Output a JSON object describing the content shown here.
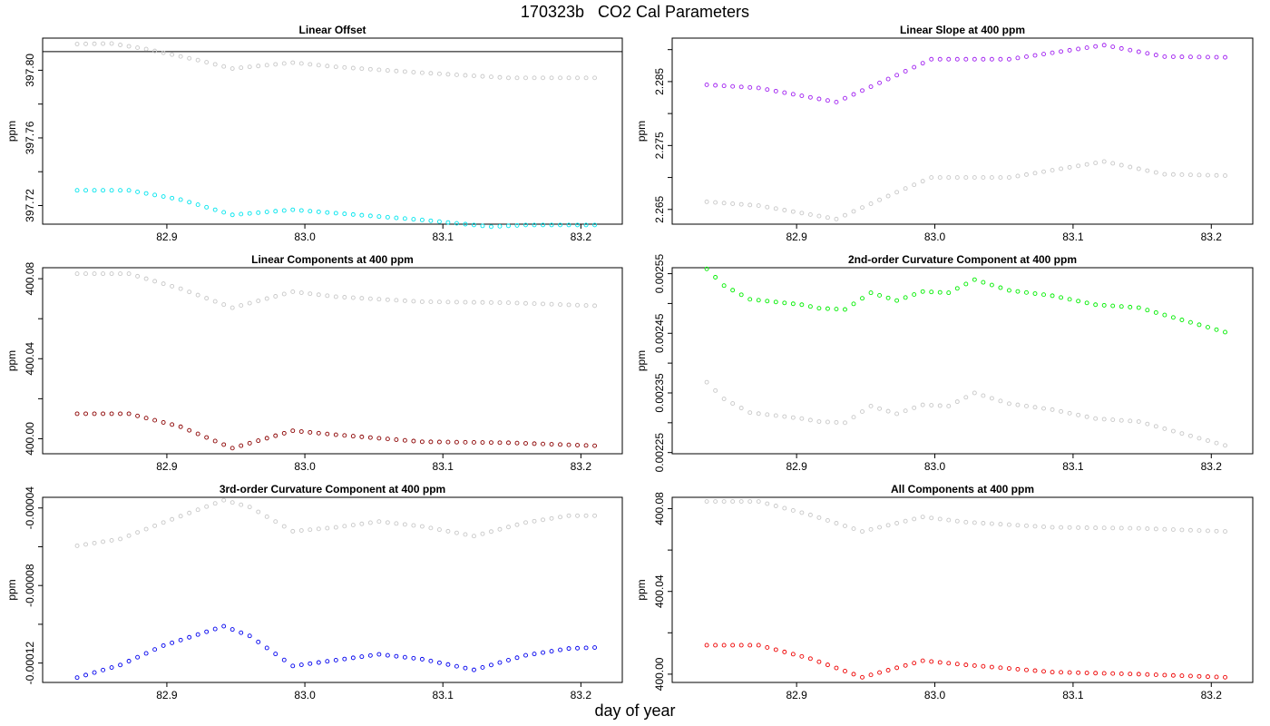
{
  "title": "170323b   CO2 Cal Parameters",
  "xlabel": "day of year",
  "colors": {
    "gray": "#c8c8c8",
    "cyan": "#00e5ee",
    "purple": "#a020f0",
    "darkred": "#8b0000",
    "green": "#00ee00",
    "blue": "#0000ee",
    "red": "#ee0000"
  },
  "x_range": {
    "start": 82.835,
    "end": 83.21,
    "step": 0.00625
  },
  "chart_data": [
    {
      "type": "scatter",
      "title": "Linear Offset",
      "ylabel": "ppm",
      "xlim": [
        82.81,
        83.23
      ],
      "ylim": [
        397.709,
        397.819
      ],
      "xticks": [
        "82.9",
        "83.0",
        "83.1",
        "83.2"
      ],
      "yticks": [
        "397.72",
        "397.76",
        "397.80"
      ],
      "hline": 397.811,
      "series": [
        {
          "name": "gray",
          "color": "gray",
          "keys": [
            [
              0,
              397.8155
            ],
            [
              4,
              397.8158
            ],
            [
              8,
              397.8125
            ],
            [
              14,
              397.806
            ],
            [
              18,
              397.801
            ],
            [
              25,
              397.8045
            ],
            [
              30,
              397.802
            ],
            [
              40,
              397.7985
            ],
            [
              50,
              397.7955
            ],
            [
              60,
              397.7955
            ]
          ]
        },
        {
          "name": "cyan",
          "color": "cyan",
          "keys": [
            [
              0,
              397.729
            ],
            [
              6,
              397.729
            ],
            [
              12,
              397.7235
            ],
            [
              18,
              397.7145
            ],
            [
              25,
              397.7175
            ],
            [
              30,
              397.7155
            ],
            [
              40,
              397.7115
            ],
            [
              48,
              397.7075
            ],
            [
              52,
              397.7085
            ],
            [
              60,
              397.7085
            ]
          ]
        }
      ]
    },
    {
      "type": "scatter",
      "title": "Linear Slope at 400 ppm",
      "ylabel": "ppm",
      "xlim": [
        82.81,
        83.23
      ],
      "ylim": [
        2.2627,
        2.2918
      ],
      "xticks": [
        "82.9",
        "83.0",
        "83.1",
        "83.2"
      ],
      "yticks": [
        "2.265",
        "2.275",
        "2.285"
      ],
      "series": [
        {
          "name": "purple",
          "color": "purple",
          "keys": [
            [
              0,
              2.2845
            ],
            [
              6,
              2.284
            ],
            [
              15,
              2.2818
            ],
            [
              22,
              2.286
            ],
            [
              26,
              2.2885
            ],
            [
              35,
              2.2885
            ],
            [
              46,
              2.2907
            ],
            [
              53,
              2.2889
            ],
            [
              60,
              2.2888
            ]
          ]
        },
        {
          "name": "gray",
          "color": "gray",
          "keys": [
            [
              0,
              2.2662
            ],
            [
              6,
              2.2656
            ],
            [
              15,
              2.2635
            ],
            [
              22,
              2.2677
            ],
            [
              26,
              2.27
            ],
            [
              35,
              2.27
            ],
            [
              46,
              2.2725
            ],
            [
              53,
              2.2705
            ],
            [
              60,
              2.2703
            ]
          ]
        }
      ]
    },
    {
      "type": "scatter",
      "title": "Linear Components at 400 ppm",
      "ylabel": "ppm",
      "xlim": [
        82.81,
        83.23
      ],
      "ylim": [
        399.9925,
        400.0855
      ],
      "xticks": [
        "82.9",
        "83.0",
        "83.1",
        "83.2"
      ],
      "yticks": [
        "400.00",
        "400.04",
        "400.08"
      ],
      "series": [
        {
          "name": "gray",
          "color": "gray",
          "keys": [
            [
              0,
              400.0825
            ],
            [
              6,
              400.0825
            ],
            [
              12,
              400.075
            ],
            [
              18,
              400.0655
            ],
            [
              25,
              400.0735
            ],
            [
              30,
              400.071
            ],
            [
              40,
              400.0685
            ],
            [
              50,
              400.068
            ],
            [
              60,
              400.0665
            ]
          ]
        },
        {
          "name": "darkred",
          "color": "darkred",
          "keys": [
            [
              0,
              400.0125
            ],
            [
              6,
              400.0125
            ],
            [
              12,
              400.006
            ],
            [
              18,
              399.9953
            ],
            [
              25,
              400.004
            ],
            [
              30,
              400.002
            ],
            [
              40,
              399.9985
            ],
            [
              50,
              399.998
            ],
            [
              60,
              399.9965
            ]
          ]
        }
      ]
    },
    {
      "type": "scatter",
      "title": "2nd-order Curvature Component at 400 ppm",
      "ylabel": "ppm",
      "xlim": [
        82.81,
        83.23
      ],
      "ylim": [
        0.002248,
        0.00256
      ],
      "xticks": [
        "82.9",
        "83.0",
        "83.1",
        "83.2"
      ],
      "yticks": [
        "0.00225",
        "0.00235",
        "0.00245",
        "0.00255"
      ],
      "series": [
        {
          "name": "green",
          "color": "green",
          "keys": [
            [
              0,
              0.002558
            ],
            [
              2,
              0.00253
            ],
            [
              5,
              0.002507
            ],
            [
              11,
              0.002498
            ],
            [
              13,
              0.002492
            ],
            [
              16,
              0.00249
            ],
            [
              19,
              0.002518
            ],
            [
              22,
              0.002505
            ],
            [
              25,
              0.00252
            ],
            [
              28,
              0.002518
            ],
            [
              31,
              0.00254
            ],
            [
              35,
              0.002522
            ],
            [
              40,
              0.002513
            ],
            [
              45,
              0.002498
            ],
            [
              50,
              0.002493
            ],
            [
              60,
              0.002452
            ]
          ]
        },
        {
          "name": "gray",
          "color": "gray",
          "keys": [
            [
              0,
              0.002368
            ],
            [
              2,
              0.00234
            ],
            [
              5,
              0.002317
            ],
            [
              11,
              0.002307
            ],
            [
              13,
              0.002302
            ],
            [
              16,
              0.0023
            ],
            [
              19,
              0.002328
            ],
            [
              22,
              0.002315
            ],
            [
              25,
              0.00233
            ],
            [
              28,
              0.002328
            ],
            [
              31,
              0.00235
            ],
            [
              35,
              0.002332
            ],
            [
              40,
              0.002322
            ],
            [
              45,
              0.002307
            ],
            [
              50,
              0.002302
            ],
            [
              60,
              0.002262
            ]
          ]
        }
      ]
    },
    {
      "type": "scatter",
      "title": "3rd-order Curvature Component at 400 ppm",
      "ylabel": "ppm",
      "xlim": [
        82.81,
        83.23
      ],
      "ylim": [
        -0.00013,
        -3.45e-05
      ],
      "xticks": [
        "82.9",
        "83.0",
        "83.1",
        "83.2"
      ],
      "yticks": [
        "-0.00012",
        "-0.00008",
        "-0.00004"
      ],
      "series": [
        {
          "name": "gray",
          "color": "gray",
          "keys": [
            [
              0,
              -5.95e-05
            ],
            [
              5,
              -5.6e-05
            ],
            [
              10,
              -4.75e-05
            ],
            [
              17,
              -3.6e-05
            ],
            [
              20,
              -3.95e-05
            ],
            [
              25,
              -5.2e-05
            ],
            [
              30,
              -5e-05
            ],
            [
              35,
              -4.7e-05
            ],
            [
              40,
              -4.95e-05
            ],
            [
              46,
              -5.45e-05
            ],
            [
              52,
              -4.75e-05
            ],
            [
              57,
              -4.4e-05
            ],
            [
              60,
              -4.4e-05
            ]
          ]
        },
        {
          "name": "blue",
          "color": "blue",
          "keys": [
            [
              0,
              -0.0001275
            ],
            [
              5,
              -0.000121
            ],
            [
              10,
              -0.000111
            ],
            [
              17,
              -0.000101
            ],
            [
              20,
              -0.000106
            ],
            [
              25,
              -0.0001215
            ],
            [
              30,
              -0.0001185
            ],
            [
              35,
              -0.0001155
            ],
            [
              40,
              -0.000118
            ],
            [
              46,
              -0.0001235
            ],
            [
              52,
              -0.000116
            ],
            [
              57,
              -0.0001125
            ],
            [
              60,
              -0.000112
            ]
          ]
        }
      ]
    },
    {
      "type": "scatter",
      "title": "All Components at 400 ppm",
      "ylabel": "ppm",
      "xlim": [
        82.81,
        83.23
      ],
      "ylim": [
        399.996,
        400.0855
      ],
      "xticks": [
        "82.9",
        "83.0",
        "83.1",
        "83.2"
      ],
      "yticks": [
        "400.00",
        "400.04",
        "400.08"
      ],
      "series": [
        {
          "name": "gray",
          "color": "gray",
          "keys": [
            [
              0,
              400.0835
            ],
            [
              6,
              400.0835
            ],
            [
              12,
              400.077
            ],
            [
              18,
              400.069
            ],
            [
              25,
              400.076
            ],
            [
              30,
              400.0735
            ],
            [
              40,
              400.071
            ],
            [
              50,
              400.0705
            ],
            [
              60,
              400.069
            ]
          ]
        },
        {
          "name": "red",
          "color": "red",
          "keys": [
            [
              0,
              400.014
            ],
            [
              6,
              400.014
            ],
            [
              12,
              400.0075
            ],
            [
              18,
              399.9985
            ],
            [
              25,
              400.0065
            ],
            [
              30,
              400.0045
            ],
            [
              40,
              400.001
            ],
            [
              50,
              400.0
            ],
            [
              60,
              399.9985
            ]
          ]
        }
      ]
    }
  ]
}
